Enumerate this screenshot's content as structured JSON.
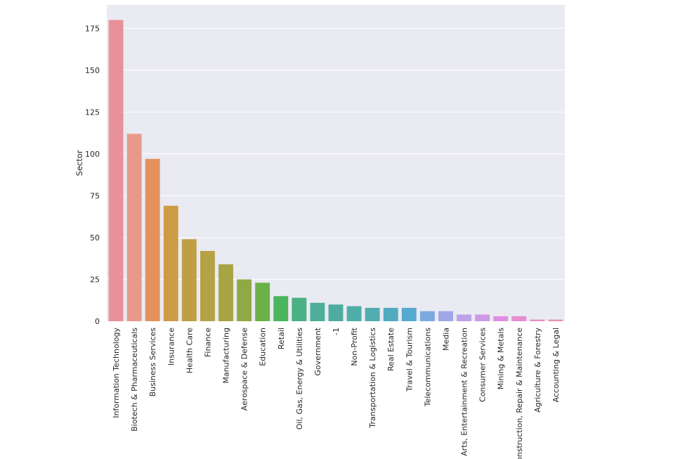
{
  "chart_data": {
    "type": "bar",
    "title": "",
    "xlabel": "",
    "ylabel": "Sector",
    "ylim": [
      0,
      189
    ],
    "yticks": [
      0,
      25,
      50,
      75,
      100,
      125,
      150,
      175
    ],
    "grid": true,
    "background": "#eaeaf2",
    "categories": [
      "Information Technology",
      "Biotech & Pharmaceuticals",
      "Business Services",
      "Insurance",
      "Health Care",
      "Finance",
      "Manufacturing",
      "Aerospace & Defense",
      "Education",
      "Retail",
      "Oil, Gas, Energy & Utilities",
      "Government",
      "-1",
      "Non-Profit",
      "Transportation & Logistics",
      "Real Estate",
      "Travel & Tourism",
      "Telecommunications",
      "Media",
      "Arts, Entertainment & Recreation",
      "Consumer Services",
      "Mining & Metals",
      "Construction, Repair & Maintenance",
      "Agriculture & Forestry",
      "Accounting & Legal"
    ],
    "values": [
      180,
      112,
      97,
      69,
      49,
      42,
      34,
      25,
      23,
      15,
      14,
      11,
      10,
      9,
      8,
      8,
      8,
      6,
      6,
      4,
      4,
      3,
      3,
      1,
      1
    ],
    "colors": [
      "#e8919a",
      "#e79a8c",
      "#e3925e",
      "#cc9c45",
      "#bf9e45",
      "#b5a146",
      "#a8a343",
      "#8faa45",
      "#6db149",
      "#49b55d",
      "#4ab183",
      "#4cae98",
      "#4eac9f",
      "#4faea7",
      "#50adb2",
      "#50abbe",
      "#56a9cf",
      "#7aaadf",
      "#a0a6e6",
      "#bba3e7",
      "#cc9be3",
      "#df8fe3",
      "#e68dd3",
      "#e890c2",
      "#e893b2"
    ]
  }
}
